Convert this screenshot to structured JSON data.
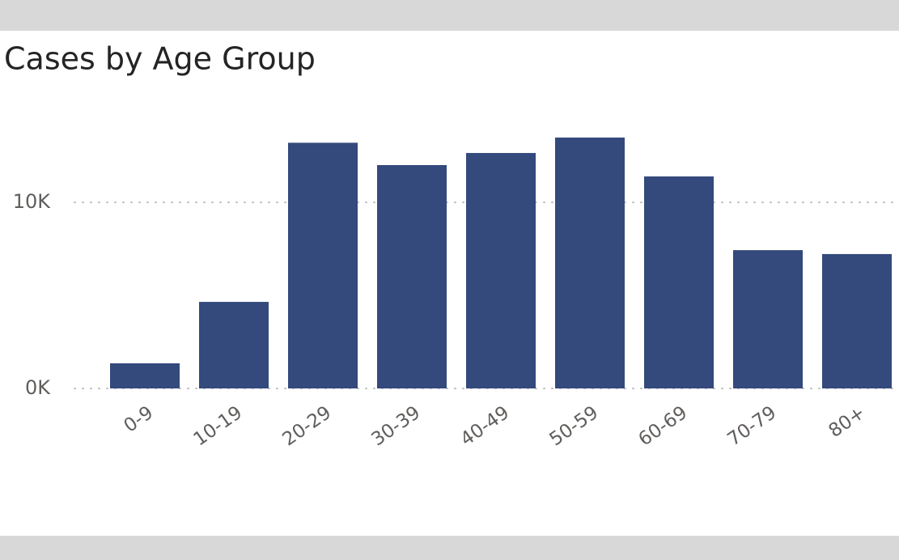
{
  "chart_data": {
    "type": "bar",
    "title": "Cases by Age Group",
    "categories": [
      "0-9",
      "10-19",
      "20-29",
      "30-39",
      "40-49",
      "50-59",
      "60-69",
      "70-79",
      "80+"
    ],
    "values": [
      1350,
      4650,
      13200,
      12000,
      12650,
      13480,
      11390,
      7430,
      7220
    ],
    "color": "#34497c",
    "ylim": [
      0,
      15000
    ],
    "yticks": [
      {
        "value": 0,
        "label": "0K"
      },
      {
        "value": 10000,
        "label": "10K"
      }
    ],
    "grid": true
  }
}
